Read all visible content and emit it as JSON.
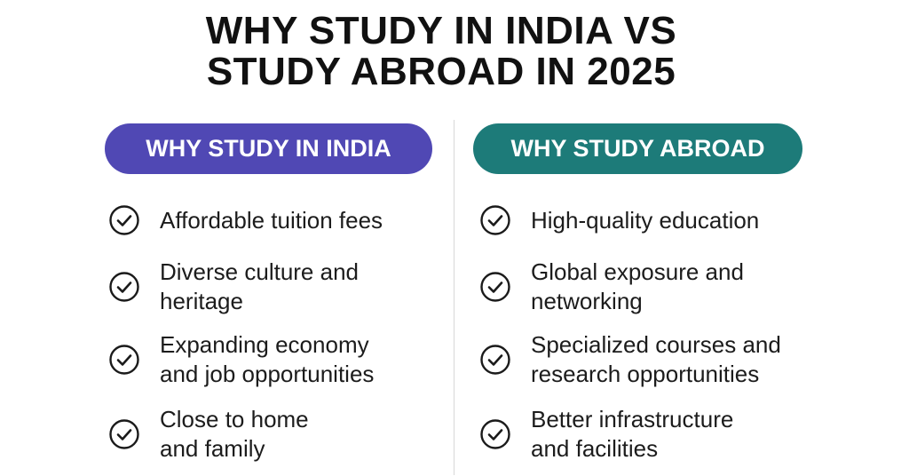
{
  "title": {
    "line1": "WHY STUDY IN INDIA VS",
    "line2": "STUDY ABROAD IN 2025"
  },
  "colors": {
    "india": "#5048b4",
    "abroad": "#1d7b79"
  },
  "india": {
    "heading": "WHY STUDY IN INDIA",
    "items": [
      {
        "icon": "check-circle-icon",
        "line1": "Affordable tuition fees",
        "line2": ""
      },
      {
        "icon": "check-circle-icon",
        "line1": "Diverse culture and",
        "line2": "heritage"
      },
      {
        "icon": "check-circle-icon",
        "line1": "Expanding economy",
        "line2": "and job opportunities"
      },
      {
        "icon": "check-circle-icon",
        "line1": "Close to home",
        "line2": "and family"
      }
    ]
  },
  "abroad": {
    "heading": "WHY STUDY ABROAD",
    "items": [
      {
        "icon": "check-circle-icon",
        "line1": "High-quality education",
        "line2": ""
      },
      {
        "icon": "check-circle-icon",
        "line1": "Global exposure and",
        "line2": "networking"
      },
      {
        "icon": "check-circle-icon",
        "line1": "Specialized courses and",
        "line2": "research opportunities"
      },
      {
        "icon": "check-circle-icon",
        "line1": "Better infrastructure",
        "line2": "and facilities"
      }
    ]
  }
}
